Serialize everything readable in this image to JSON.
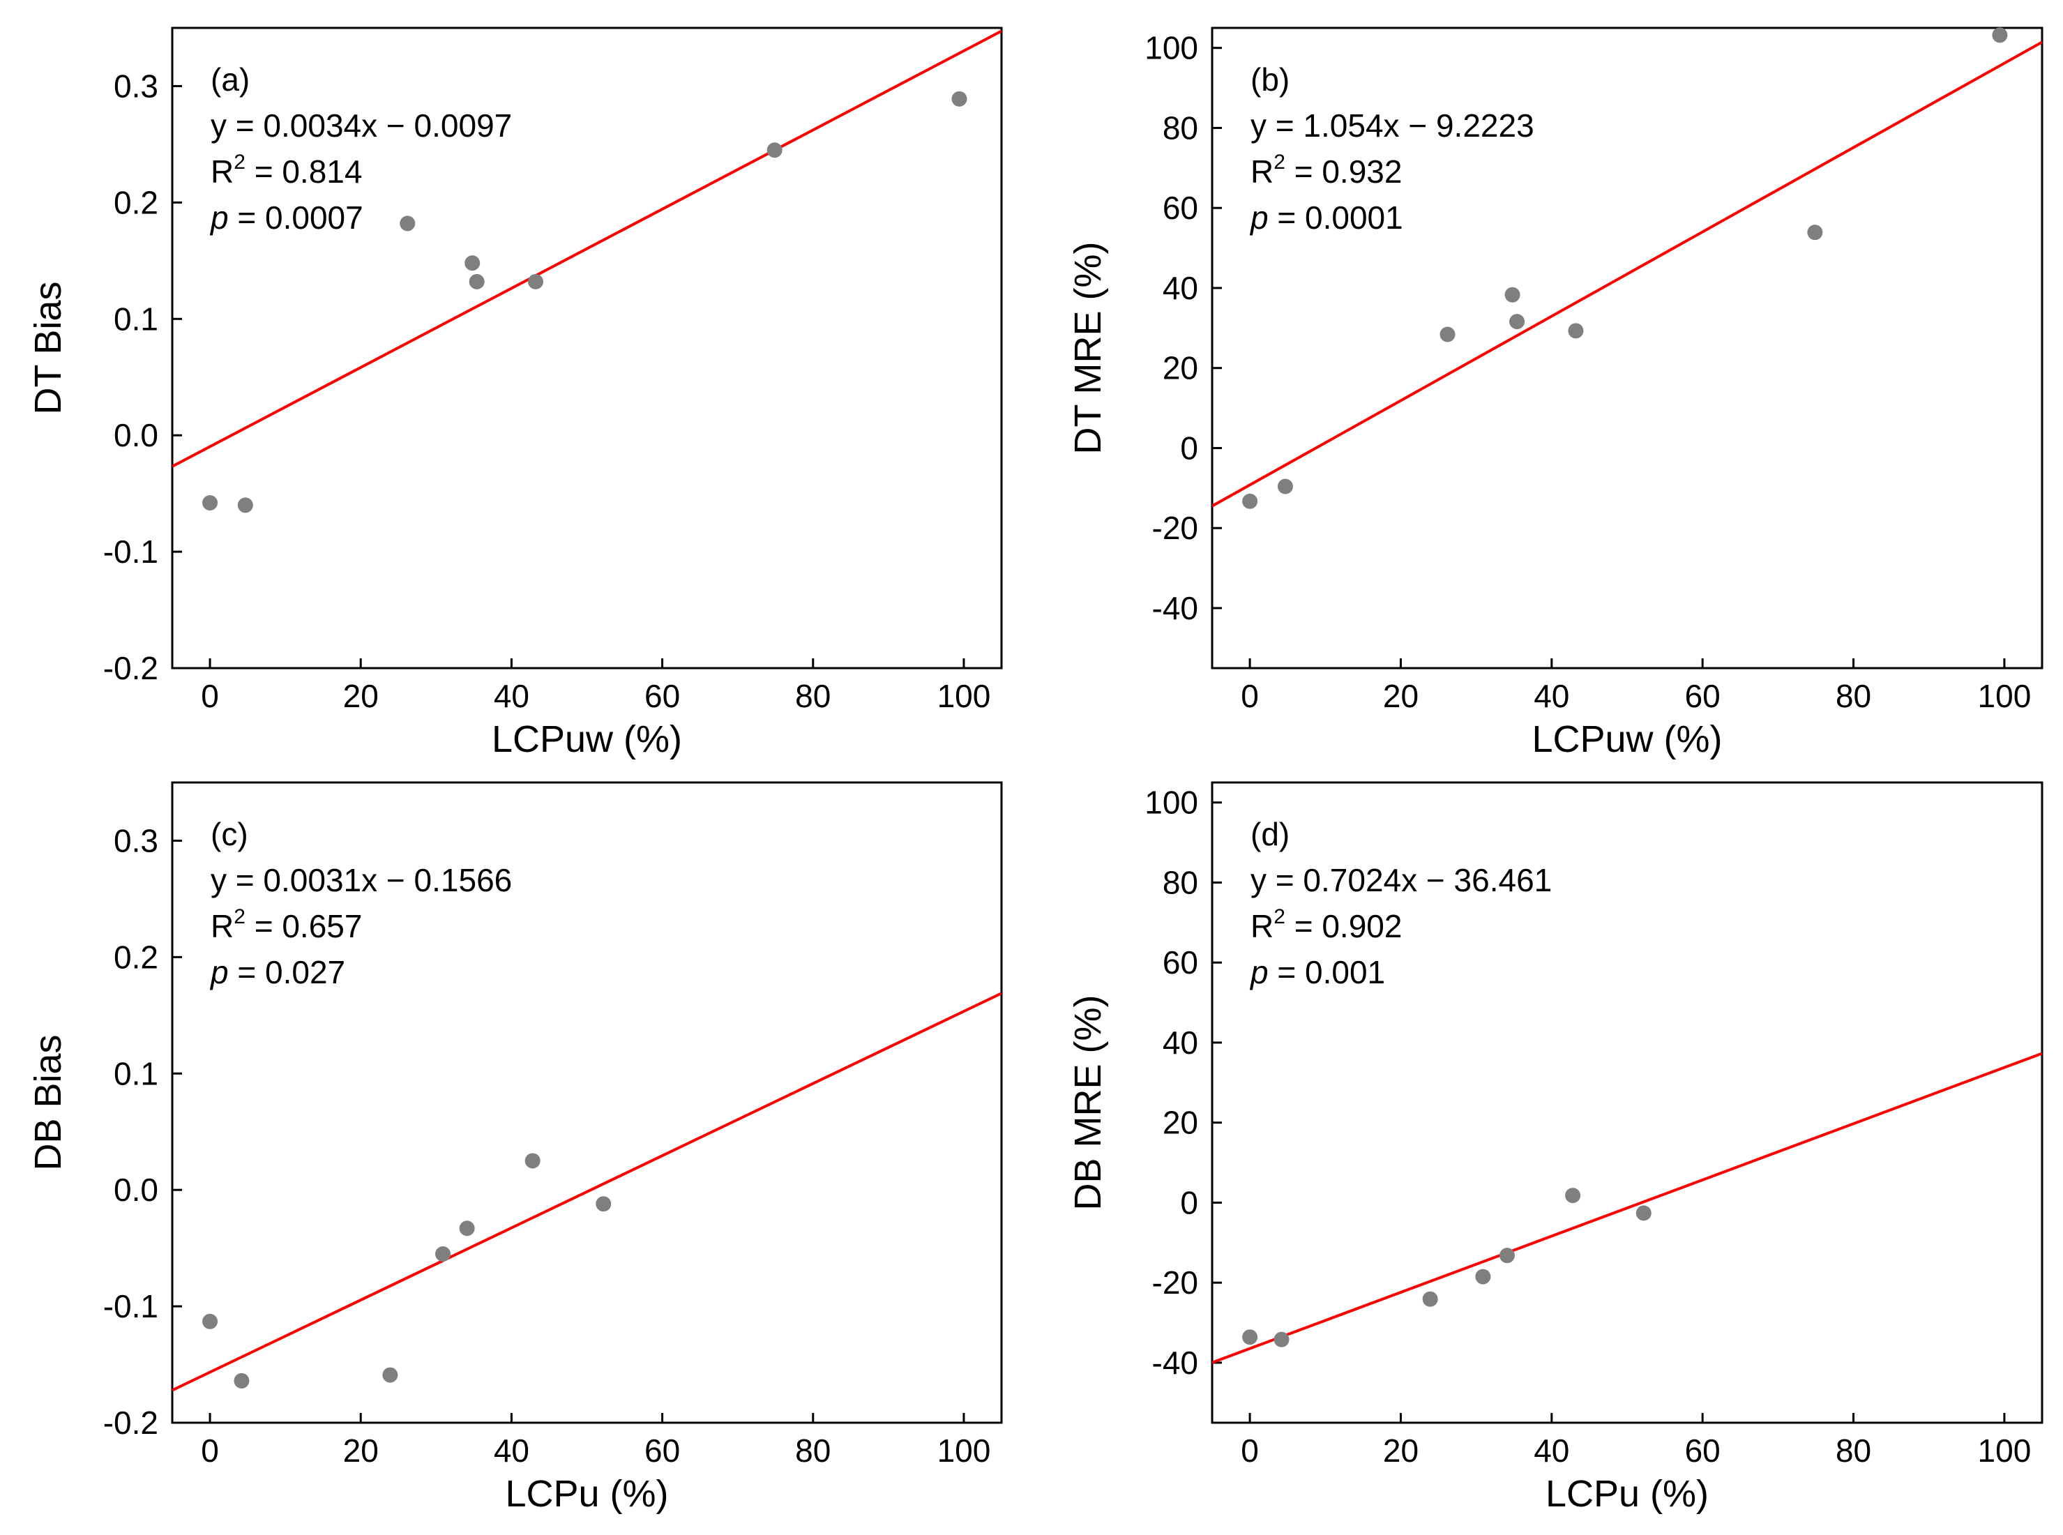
{
  "colors": {
    "point": "#7f7f7f",
    "fit_line": "#ff0000",
    "axis": "#000000",
    "background": "#ffffff"
  },
  "chart_data": [
    {
      "type": "scatter",
      "panel": "(a)",
      "xlabel": "LCPuw (%)",
      "ylabel": "DT Bias",
      "xlim": [
        -5,
        105
      ],
      "ylim": [
        -0.2,
        0.35
      ],
      "xticks": [
        0,
        20,
        40,
        60,
        80,
        100
      ],
      "xtick_labels": [
        "0",
        "20",
        "40",
        "60",
        "80",
        "100"
      ],
      "yticks": [
        -0.2,
        -0.1,
        0.0,
        0.1,
        0.2,
        0.3
      ],
      "ytick_labels": [
        "-0.2",
        "-0.1",
        "0.0",
        "0.1",
        "0.2",
        "0.3"
      ],
      "x": [
        0,
        4.7,
        26.2,
        34.8,
        35.4,
        43.2,
        74.9,
        99.4
      ],
      "y": [
        -0.058,
        -0.06,
        0.182,
        0.148,
        0.132,
        0.132,
        0.245,
        0.289
      ],
      "fit": {
        "slope": 0.0034,
        "intercept": -0.0097
      },
      "annotation": {
        "panel_label": "(a)",
        "equation": "y = 0.0034x − 0.0097",
        "r2_prefix": "R",
        "r2_value": " = 0.814",
        "p_symbol": "p",
        "p_value": " = 0.0007"
      }
    },
    {
      "type": "scatter",
      "panel": "(b)",
      "xlabel": "LCPuw (%)",
      "ylabel": "DT MRE (%)",
      "xlim": [
        -5,
        105
      ],
      "ylim": [
        -55,
        105
      ],
      "xticks": [
        0,
        20,
        40,
        60,
        80,
        100
      ],
      "xtick_labels": [
        "0",
        "20",
        "40",
        "60",
        "80",
        "100"
      ],
      "yticks": [
        -40,
        -20,
        0,
        20,
        40,
        60,
        80,
        100
      ],
      "ytick_labels": [
        "-40",
        "-20",
        "0",
        "20",
        "40",
        "60",
        "80",
        "100"
      ],
      "x": [
        0,
        4.7,
        26.2,
        34.8,
        35.4,
        43.2,
        74.9,
        99.4
      ],
      "y": [
        -13.3,
        -9.6,
        28.4,
        38.3,
        31.6,
        29.3,
        53.9,
        103.2
      ],
      "fit": {
        "slope": 1.054,
        "intercept": -9.2223
      },
      "annotation": {
        "panel_label": "(b)",
        "equation": "y = 1.054x − 9.2223",
        "r2_prefix": "R",
        "r2_value": " = 0.932",
        "p_symbol": "p",
        "p_value": " = 0.0001"
      }
    },
    {
      "type": "scatter",
      "panel": "(c)",
      "xlabel": "LCPu (%)",
      "ylabel": "DB Bias",
      "xlim": [
        -5,
        105
      ],
      "ylim": [
        -0.2,
        0.35
      ],
      "xticks": [
        0,
        20,
        40,
        60,
        80,
        100
      ],
      "xtick_labels": [
        "0",
        "20",
        "40",
        "60",
        "80",
        "100"
      ],
      "yticks": [
        -0.2,
        -0.1,
        0.0,
        0.1,
        0.2,
        0.3
      ],
      "ytick_labels": [
        "-0.2",
        "-0.1",
        "0.0",
        "0.1",
        "0.2",
        "0.3"
      ],
      "x": [
        0,
        4.2,
        23.9,
        30.9,
        34.1,
        42.8,
        52.2
      ],
      "y": [
        -0.113,
        -0.164,
        -0.159,
        -0.055,
        -0.033,
        0.025,
        -0.012
      ],
      "fit": {
        "slope": 0.0031,
        "intercept": -0.1566
      },
      "annotation": {
        "panel_label": "(c)",
        "equation": "y = 0.0031x − 0.1566",
        "r2_prefix": "R",
        "r2_value": " = 0.657",
        "p_symbol": "p",
        "p_value": " = 0.027"
      }
    },
    {
      "type": "scatter",
      "panel": "(d)",
      "xlabel": "LCPu (%)",
      "ylabel": "DB MRE (%)",
      "xlim": [
        -5,
        105
      ],
      "ylim": [
        -55,
        105
      ],
      "xticks": [
        0,
        20,
        40,
        60,
        80,
        100
      ],
      "xtick_labels": [
        "0",
        "20",
        "40",
        "60",
        "80",
        "100"
      ],
      "yticks": [
        -40,
        -20,
        0,
        20,
        40,
        60,
        80,
        100
      ],
      "ytick_labels": [
        "-40",
        "-20",
        "0",
        "20",
        "40",
        "60",
        "80",
        "100"
      ],
      "x": [
        0,
        4.2,
        23.9,
        30.9,
        34.1,
        42.8,
        52.2
      ],
      "y": [
        -33.6,
        -34.2,
        -24.1,
        -18.5,
        -13.2,
        1.8,
        -2.6
      ],
      "fit": {
        "slope": 0.7024,
        "intercept": -36.461
      },
      "annotation": {
        "panel_label": "(d)",
        "equation": "y = 0.7024x − 36.461",
        "r2_prefix": "R",
        "r2_value": " = 0.902",
        "p_symbol": "p",
        "p_value": " = 0.001"
      }
    }
  ]
}
